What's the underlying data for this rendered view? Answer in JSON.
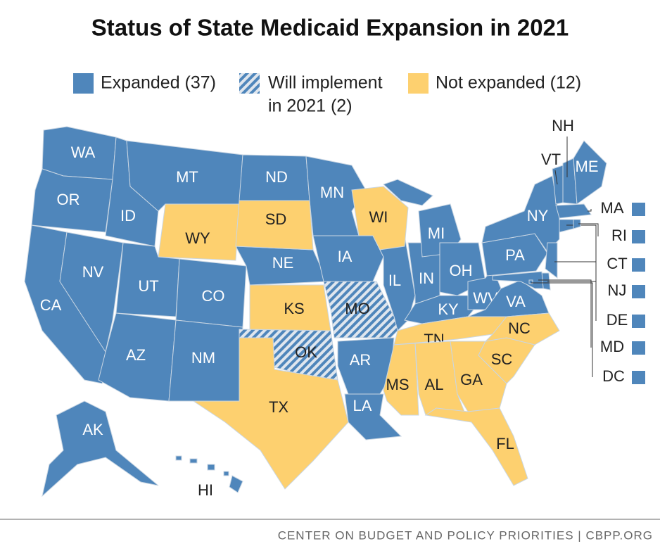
{
  "title": "Status of State Medicaid Expansion in 2021",
  "legend": [
    {
      "label": [
        "Expanded (37)"
      ],
      "color": "#4f86bb",
      "pattern": "solid",
      "states": [
        "WA",
        "OR",
        "CA",
        "NV",
        "ID",
        "MT",
        "UT",
        "CO",
        "AZ",
        "NM",
        "ND",
        "NE",
        "MN",
        "IA",
        "IL",
        "IN",
        "MI",
        "OH",
        "KY",
        "WV",
        "VA",
        "PA",
        "NY",
        "NJ",
        "DE",
        "MD",
        "DC",
        "CT",
        "RI",
        "MA",
        "VT",
        "NH",
        "ME",
        "AK",
        "HI",
        "LA",
        "AR"
      ]
    },
    {
      "label": [
        "Will implement",
        "in 2021 (2)"
      ],
      "color": "#4f86bb",
      "pattern": "hatched",
      "states": [
        "MO",
        "OK"
      ]
    },
    {
      "label": [
        "Not expanded (12)"
      ],
      "color": "#fdd06f",
      "pattern": "solid",
      "states": [
        "WY",
        "SD",
        "WI",
        "KS",
        "TX",
        "TN",
        "MS",
        "AL",
        "GA",
        "FL",
        "SC",
        "NC"
      ]
    }
  ],
  "footer": "CENTER ON BUDGET AND POLICY PRIORITIES | CBPP.ORG"
}
